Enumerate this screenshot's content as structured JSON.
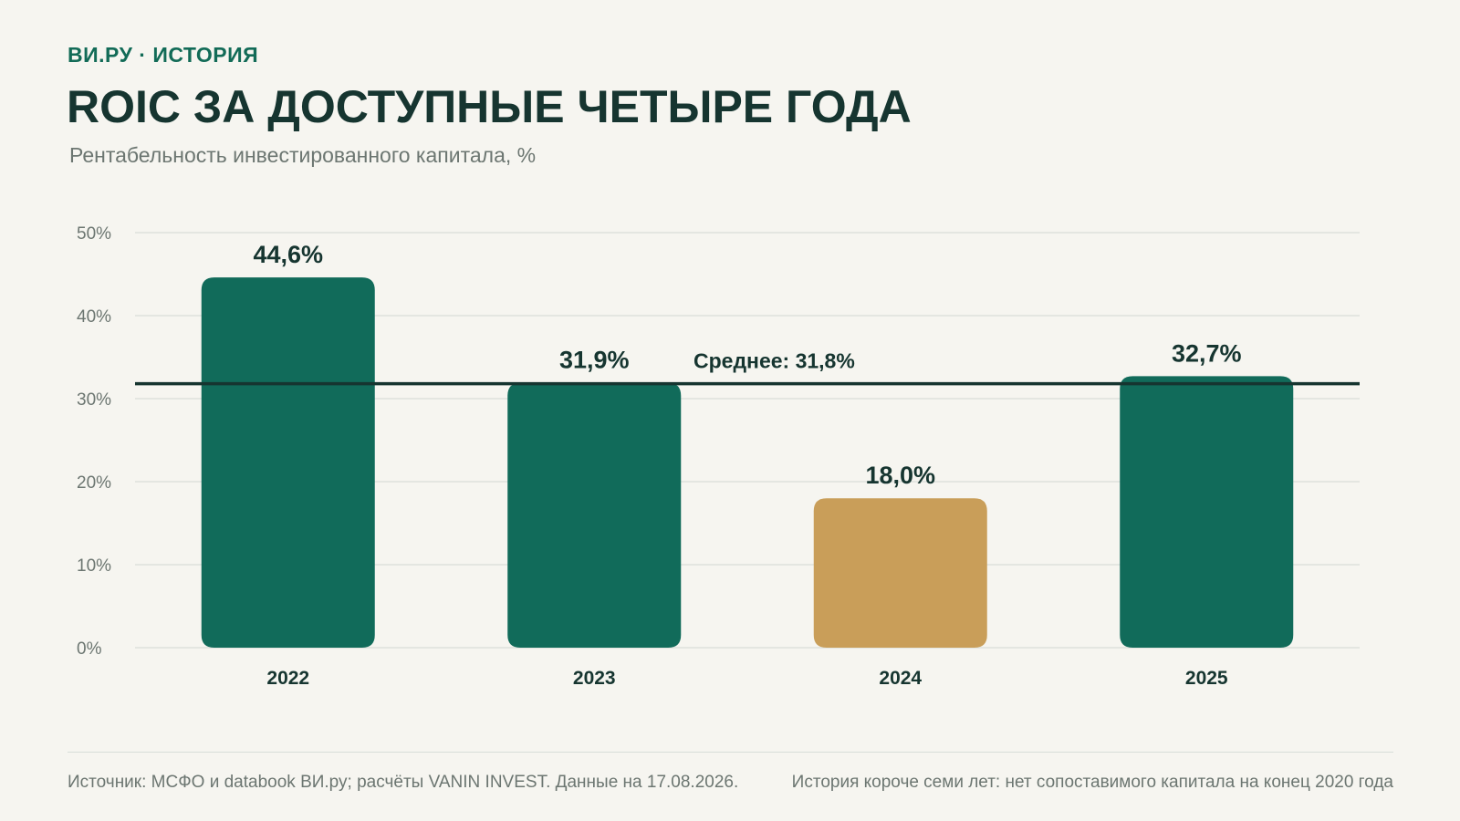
{
  "header": {
    "kicker": "ВИ.РУ · ИСТОРИЯ",
    "title": "ROIC ЗА ДОСТУПНЫЕ ЧЕТЫРЕ ГОДА",
    "subtitle": "Рентабельность инвестированного капитала, %"
  },
  "chart_data": {
    "type": "bar",
    "categories": [
      "2022",
      "2023",
      "2024",
      "2025"
    ],
    "values": [
      44.6,
      31.9,
      18.0,
      32.7
    ],
    "value_labels": [
      "44,6%",
      "31,9%",
      "18,0%",
      "32,7%"
    ],
    "bar_colors": [
      "#116b5a",
      "#116b5a",
      "#c99e59",
      "#116b5a"
    ],
    "ylim": [
      0,
      50
    ],
    "yticks": [
      0,
      10,
      20,
      30,
      40,
      50
    ],
    "ytick_labels": [
      "0%",
      "10%",
      "20%",
      "30%",
      "40%",
      "50%"
    ],
    "grid": true,
    "average": {
      "value": 31.8,
      "label": "Среднее: 31,8%",
      "color": "#163530"
    }
  },
  "footer": {
    "source": "Источник: МСФО и databook ВИ.ру; расчёты VANIN INVEST. Данные на 17.08.2026.",
    "note": "История короче семи лет: нет сопоставимого капитала на конец 2020 года"
  },
  "colors": {
    "background": "#f6f5f0",
    "accent": "#126b57",
    "title": "#163530",
    "muted": "#6c7671",
    "gridline": "#dde2dc"
  }
}
